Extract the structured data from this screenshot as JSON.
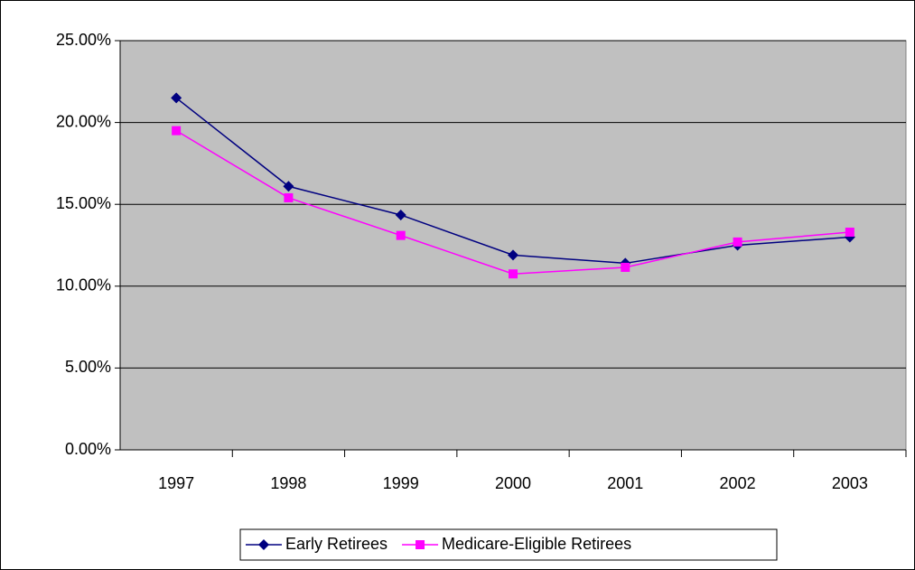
{
  "chart_data": {
    "type": "line",
    "categories": [
      "1997",
      "1998",
      "1999",
      "2000",
      "2001",
      "2002",
      "2003"
    ],
    "series": [
      {
        "name": "Early Retirees",
        "color": "#000080",
        "marker": "diamond",
        "values": [
          21.5,
          16.1,
          14.35,
          11.9,
          11.4,
          12.5,
          13.0
        ]
      },
      {
        "name": "Medicare-Eligible Retirees",
        "color": "#ff00ff",
        "marker": "square",
        "values": [
          19.5,
          15.4,
          13.1,
          10.75,
          11.15,
          12.7,
          13.3
        ]
      }
    ],
    "ylim": [
      0,
      25
    ],
    "yticks": [
      {
        "value": 0,
        "label": "0.00%"
      },
      {
        "value": 5,
        "label": "5.00%"
      },
      {
        "value": 10,
        "label": "10.00%"
      },
      {
        "value": 15,
        "label": "15.00%"
      },
      {
        "value": 20,
        "label": "20.00%"
      },
      {
        "value": 25,
        "label": "25.00%"
      }
    ],
    "grid": true,
    "plot_background": "#c0c0c0",
    "legend": "bottom"
  }
}
